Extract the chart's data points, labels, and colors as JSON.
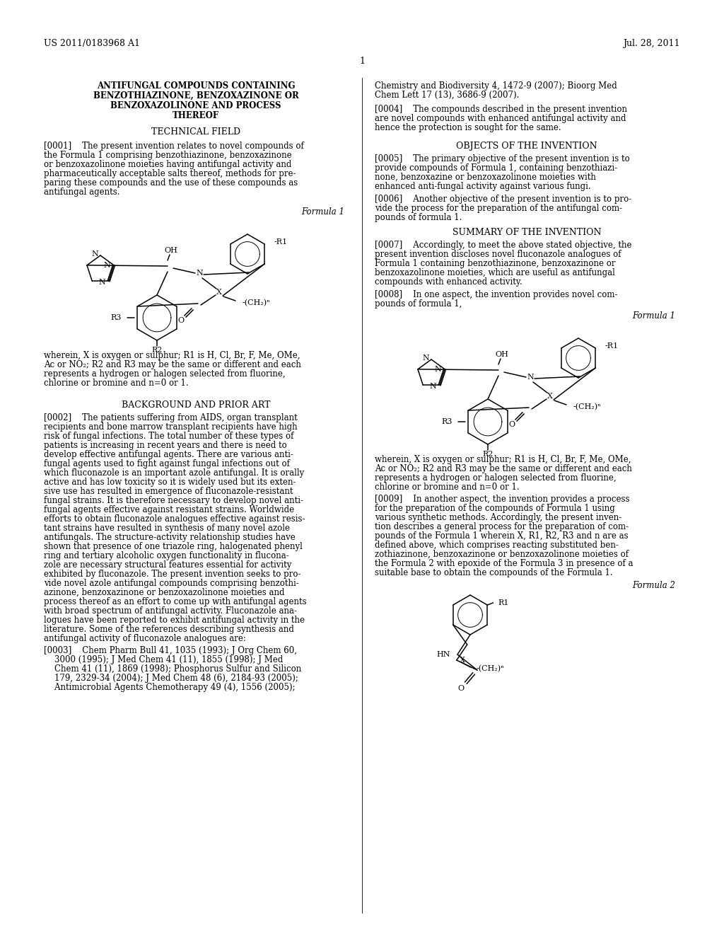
{
  "background_color": "#ffffff",
  "header_left": "US 2011/0183968 A1",
  "header_right": "Jul. 28, 2011",
  "page_number": "1",
  "left_col_title_line1": "ANTIFUNGAL COMPOUNDS CONTAINING",
  "left_col_title_line2": "BENZOTHIAZINONE, BENZOXAZINONE OR",
  "left_col_title_line3": "BENZOXAZOLINONE AND PROCESS",
  "left_col_title_line4": "THEREOF",
  "section1_head": "TECHNICAL FIELD",
  "para0001": "[0001]    The present invention relates to novel compounds of the Formula 1 comprising benzothiazinone, benzoxazinone or benzoxazolinone moieties having antifungal activity and pharmaceutically acceptable salts thereof, methods for pre-paring these compounds and the use of these compounds as antifungal agents.",
  "formula1_label": "Formula 1",
  "wherein_text": "wherein, X is oxygen or sulphur; R1 is H, Cl, Br, F, Me, OMe, Ac or NO₂; R2 and R3 may be the same or different and each represents a hydrogen or halogen selected from fluorine, chlorine or bromine and n=0 or 1.",
  "section2_head": "BACKGROUND AND PRIOR ART",
  "para0002": "[0002]    The patients suffering from AIDS, organ transplant recipients and bone marrow transplant recipients have high risk of fungal infections. The total number of these types of patients is increasing in recent years and there is need to develop effective antifungal agents. There are various anti-fungal agents used to fight against fungal infections out of which fluconazole is an important azole antifungal. It is orally active and has low toxicity so it is widely used but its exten-sive use has resulted in emergence of fluconazole-resistant fungal strains. It is therefore necessary to develop novel anti-fungal agents effective against resistant strains. Worldwide efforts to obtain fluconazole analogues effective against resis-tant strains have resulted in synthesis of many novel azole antifungals. The structure-activity relationship studies have shown that presence of one triazole ring, halogenated phenyl ring and tertiary alcoholic oxygen functionality in flucona-zole are necessary structural features essential for activity exhibited by fluconazole. The present invention seeks to pro-vide novel azole antifungal compounds comprising benzothi-azinone, benzoxazinone or benzoxazolinone moieties and process thereof as an effort to come up with antifungal agents with broad spectrum of antifungal activity. Fluconazole ana-logues have been reported to exhibit antifungal activity in the literature. Some of the references describing synthesis and antifungal activity of fluconazole analogues are:",
  "para0003_line1": "[0003]    Chem Pharm Bull 41, 1035 (1993); J Org Chem 60,",
  "para0003_line2": "    3000 (1995); J Med Chem 41 (11), 1855 (1998); J Med",
  "para0003_line3": "    Chem 41 (11), 1869 (1998); Phosphorus Sulfur and Silicon",
  "para0003_line4": "    179, 2329-34 (2004); J Med Chem 48 (6), 2184-93 (2005);",
  "para0003_line5": "    Antimicrobial Agents Chemotherapy 49 (4), 1556 (2005);",
  "right_top_line1": "Chemistry and Biodiversity 4, 1472-9 (2007); Bioorg Med",
  "right_top_line2": "Chem Lett 17 (13), 3686-9 (2007).",
  "para0004": "[0004]    The compounds described in the present invention are novel compounds with enhanced antifungal activity and hence the protection is sought for the same.",
  "section3_head": "OBJECTS OF THE INVENTION",
  "para0005_line1": "[0005]    The primary objective of the present invention is to",
  "para0005_line2": "provide compounds of Formula 1, containing benzothiazi-",
  "para0005_line3": "none, benzoxazine or benzoxazolinone moieties with",
  "para0005_line4": "enhanced anti-fungal activity against various fungi.",
  "para0006_line1": "[0006]    Another objective of the present invention is to pro-",
  "para0006_line2": "vide the process for the preparation of the antifungal com-",
  "para0006_line3": "pounds of formula 1.",
  "section4_head": "SUMMARY OF THE INVENTION",
  "para0007_line1": "[0007]    Accordingly, to meet the above stated objective, the",
  "para0007_line2": "present invention discloses novel fluconazole analogues of",
  "para0007_line3": "Formula 1 containing benzothiazinone, benzoxazinone or",
  "para0007_line4": "benzoxazolinone moieties, which are useful as antifungal",
  "para0007_line5": "compounds with enhanced activity.",
  "para0008_line1": "[0008]    In one aspect, the invention provides novel com-",
  "para0008_line2": "pounds of formula 1,",
  "formula1_label_right": "Formula 1",
  "wherein_right_line1": "wherein, X is oxygen or sulphur; R1 is H, Cl, Br, F, Me, OMe,",
  "wherein_right_line2": "Ac or NO₂; R2 and R3 may be the same or different and each",
  "wherein_right_line3": "represents a hydrogen or halogen selected from fluorine,",
  "wherein_right_line4": "chlorine or bromine and n=0 or 1.",
  "para0009_line1": "[0009]    In another aspect, the invention provides a process",
  "para0009_line2": "for the preparation of the compounds of Formula 1 using",
  "para0009_line3": "various synthetic methods. Accordingly, the present inven-",
  "para0009_line4": "tion describes a general process for the preparation of com-",
  "para0009_line5": "pounds of the Formula 1 wherein X, R1, R2, R3 and n are as",
  "para0009_line6": "defined above, which comprises reacting substituted ben-",
  "para0009_line7": "zothiazinone, benzoxazinone or benzoxazolinone moieties of",
  "para0009_line8": "the Formula 2 with epoxide of the Formula 3 in presence of a",
  "para0009_line9": "suitable base to obtain the compounds of the Formula 1.",
  "formula2_label": "Formula 2"
}
